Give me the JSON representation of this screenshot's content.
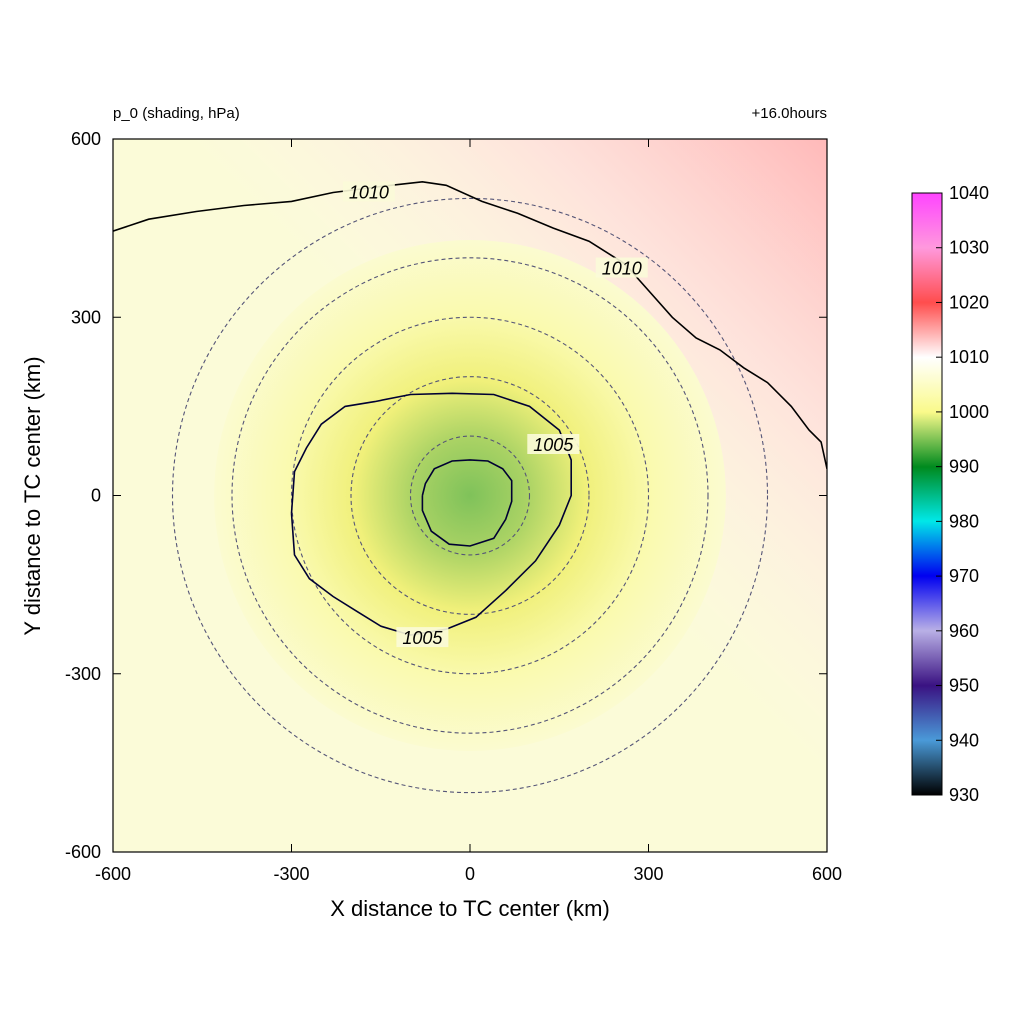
{
  "chart_data": {
    "type": "heatmap",
    "title_left": "p_0 (shading, hPa)",
    "title_right": "+16.0hours",
    "xlabel": "X distance to TC center (km)",
    "ylabel": "Y distance to TC center (km)",
    "xlim": [
      -600,
      600
    ],
    "ylim": [
      -600,
      600
    ],
    "xticks": [
      -600,
      -300,
      0,
      300,
      600
    ],
    "yticks": [
      -600,
      -300,
      0,
      300,
      600
    ],
    "grid": false,
    "field": {
      "center_value": 997,
      "center_x": 0,
      "center_y": 0,
      "note_values_hpa": [
        997,
        1005,
        1010,
        1013
      ]
    },
    "contours": [
      {
        "label": "1005",
        "color": "#000033",
        "points": [
          [
            -300,
            -30
          ],
          [
            -295,
            40
          ],
          [
            -275,
            80
          ],
          [
            -250,
            120
          ],
          [
            -210,
            150
          ],
          [
            -160,
            158
          ],
          [
            -100,
            170
          ],
          [
            -30,
            172
          ],
          [
            40,
            170
          ],
          [
            100,
            150
          ],
          [
            150,
            110
          ],
          [
            170,
            60
          ],
          [
            170,
            0
          ],
          [
            150,
            -50
          ],
          [
            110,
            -110
          ],
          [
            60,
            -160
          ],
          [
            10,
            -205
          ],
          [
            -40,
            -225
          ],
          [
            -100,
            -235
          ],
          [
            -150,
            -220
          ],
          [
            -190,
            -195
          ],
          [
            -230,
            -170
          ],
          [
            -270,
            -140
          ],
          [
            -295,
            -100
          ],
          [
            -300,
            -30
          ]
        ],
        "label_positions": [
          [
            140,
            85
          ],
          [
            -80,
            -240
          ]
        ]
      },
      {
        "label": "",
        "color": "#000033",
        "points": [
          [
            -80,
            0
          ],
          [
            -75,
            20
          ],
          [
            -60,
            45
          ],
          [
            -30,
            58
          ],
          [
            0,
            60
          ],
          [
            30,
            58
          ],
          [
            55,
            45
          ],
          [
            70,
            25
          ],
          [
            70,
            -10
          ],
          [
            60,
            -40
          ],
          [
            40,
            -72
          ],
          [
            0,
            -85
          ],
          [
            -35,
            -82
          ],
          [
            -65,
            -60
          ],
          [
            -80,
            -25
          ],
          [
            -80,
            0
          ]
        ],
        "label_positions": []
      },
      {
        "label": "1010",
        "color": "#000000",
        "points": [
          [
            -600,
            445
          ],
          [
            -540,
            465
          ],
          [
            -460,
            478
          ],
          [
            -380,
            488
          ],
          [
            -300,
            495
          ],
          [
            -230,
            510
          ],
          [
            -150,
            520
          ],
          [
            -80,
            528
          ],
          [
            -40,
            522
          ],
          [
            20,
            495
          ],
          [
            80,
            475
          ],
          [
            140,
            450
          ],
          [
            200,
            428
          ],
          [
            260,
            390
          ],
          [
            300,
            345
          ],
          [
            340,
            300
          ],
          [
            380,
            265
          ],
          [
            420,
            245
          ],
          [
            460,
            215
          ],
          [
            500,
            190
          ],
          [
            540,
            150
          ],
          [
            570,
            110
          ],
          [
            590,
            90
          ],
          [
            600,
            45
          ]
        ],
        "label_positions": [
          [
            -170,
            510
          ],
          [
            255,
            382
          ]
        ]
      }
    ],
    "range_rings_km": [
      100,
      200,
      300,
      400,
      500
    ],
    "colorbar": {
      "ticks": [
        930,
        940,
        950,
        960,
        970,
        980,
        990,
        1000,
        1010,
        1020,
        1030,
        1040
      ],
      "range": [
        930,
        1040
      ],
      "colors": [
        "#000000",
        "#4a9ad8",
        "#3a1282",
        "#b9b0e6",
        "#0000f0",
        "#00e8e8",
        "#008a1e",
        "#fafa8a",
        "#ffffff",
        "#ff4d4d",
        "#ff99dd",
        "#ff44ff"
      ]
    }
  }
}
